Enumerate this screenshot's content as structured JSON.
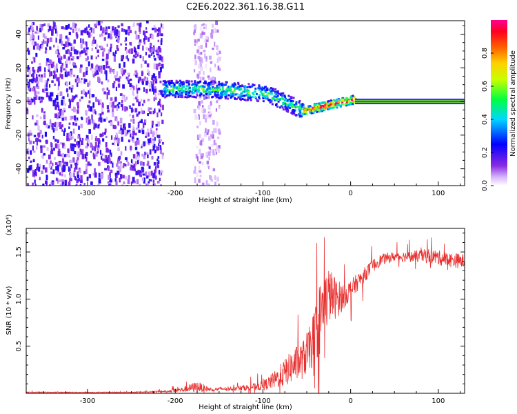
{
  "page": {
    "title": "C2E6.2022.361.16.38.G11"
  },
  "colors": {
    "snr_line": "#e8302f",
    "frame": "#000000",
    "colorbar": [
      "#ffffff",
      "#8a2be2",
      "#0000ff",
      "#00d7ff",
      "#00ff40",
      "#ffff00",
      "#ff8000",
      "#ff0000",
      "#ff0090"
    ]
  },
  "chart_data": [
    {
      "type": "heatmap",
      "title": "",
      "xlabel": "Height of straight line (km)",
      "ylabel": "Frequency (Hz)",
      "xlim": [
        -370,
        130
      ],
      "ylim": [
        -50,
        48
      ],
      "x_ticks": [
        -300,
        -200,
        -100,
        0,
        100
      ],
      "y_ticks": [
        -40,
        -20,
        0,
        20,
        40
      ],
      "colorbar": {
        "label": "Normalized spectral amplitude",
        "range": [
          0,
          1
        ],
        "ticks": [
          "0.0",
          "0.2",
          "0.4",
          "0.6",
          "0.8"
        ]
      },
      "regions": [
        {
          "x_range": [
            -370,
            -215
          ],
          "freq_range": [
            -50,
            48
          ],
          "amplitude": 0.12,
          "pattern": "noise"
        },
        {
          "x_range": [
            -180,
            -150
          ],
          "freq_range": [
            -50,
            48
          ],
          "amplitude": 0.05,
          "pattern": "faint-noise"
        },
        {
          "x_range": [
            -215,
            -55
          ],
          "freq_center": [
            8,
            8,
            7,
            5,
            -5
          ],
          "freq_width": 10,
          "amplitude": 0.45,
          "pattern": "band"
        },
        {
          "x_range": [
            -55,
            5
          ],
          "freq_center": [
            -5,
            2
          ],
          "freq_width": 5,
          "amplitude": 0.85,
          "pattern": "band"
        },
        {
          "x_range": [
            5,
            130
          ],
          "freq_center": [
            0,
            0
          ],
          "freq_width": 3,
          "amplitude": 1.0,
          "pattern": "tone"
        }
      ]
    },
    {
      "type": "line",
      "title": "",
      "xlabel": "Height of straight line (km)",
      "ylabel": "SNR (10 * v/v)",
      "y_multiplier": "(x10⁴)",
      "xlim": [
        -370,
        130
      ],
      "ylim": [
        0,
        1.75
      ],
      "x_ticks": [
        -300,
        -200,
        -100,
        0,
        100
      ],
      "y_ticks": [
        0.5,
        1.0,
        1.5
      ],
      "series": [
        {
          "x": [
            -370,
            -300,
            -250,
            -210,
            -190,
            -175,
            -160,
            -140,
            -120,
            -100,
            -85,
            -75,
            -65,
            -55,
            -45,
            -35,
            -25,
            -15,
            -5,
            5,
            15,
            25,
            35,
            50,
            70,
            90,
            110,
            130
          ],
          "y": [
            0.01,
            0.01,
            0.01,
            0.02,
            0.04,
            0.07,
            0.04,
            0.05,
            0.06,
            0.08,
            0.15,
            0.22,
            0.3,
            0.35,
            0.5,
            0.8,
            1.05,
            1.0,
            1.05,
            1.15,
            1.25,
            1.35,
            1.42,
            1.45,
            1.45,
            1.46,
            1.42,
            1.4
          ],
          "noise": [
            0.005,
            0.005,
            0.005,
            0.01,
            0.03,
            0.06,
            0.02,
            0.02,
            0.03,
            0.05,
            0.1,
            0.15,
            0.18,
            0.2,
            0.25,
            0.4,
            0.3,
            0.2,
            0.12,
            0.1,
            0.08,
            0.07,
            0.06,
            0.05,
            0.06,
            0.08,
            0.08,
            0.08
          ]
        }
      ]
    }
  ]
}
